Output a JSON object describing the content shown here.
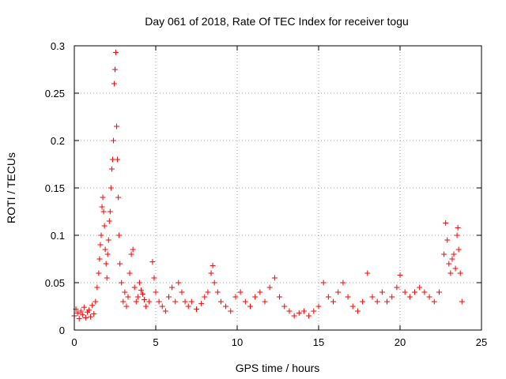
{
  "chart_data": {
    "type": "scatter",
    "title": "Day 061 of 2018, Rate Of TEC Index for receiver togu",
    "xlabel": "GPS time / hours",
    "ylabel": "ROTI / TECUs",
    "xlim": [
      0,
      25
    ],
    "ylim": [
      0,
      0.3
    ],
    "xticks": [
      0,
      5,
      10,
      15,
      20,
      25
    ],
    "yticks": [
      0,
      0.05,
      0.1,
      0.15,
      0.2,
      0.25,
      0.3
    ],
    "xtick_labels": [
      "0",
      "5",
      "10",
      "15",
      "20",
      "25"
    ],
    "ytick_labels": [
      "0",
      "0.05",
      "0.1",
      "0.15",
      "0.2",
      "0.25",
      "0.3"
    ],
    "grid": true,
    "legend": "none",
    "marker": "plus",
    "series_color": "#ff0000",
    "series": [
      {
        "points": [
          [
            0.0,
            0.015
          ],
          [
            0.1,
            0.022
          ],
          [
            0.2,
            0.018
          ],
          [
            0.3,
            0.012
          ],
          [
            0.4,
            0.02
          ],
          [
            0.5,
            0.016
          ],
          [
            0.6,
            0.024
          ],
          [
            0.7,
            0.013
          ],
          [
            0.8,
            0.019
          ],
          [
            0.9,
            0.021
          ],
          [
            1.0,
            0.014
          ],
          [
            1.1,
            0.026
          ],
          [
            1.2,
            0.017
          ],
          [
            1.3,
            0.03
          ],
          [
            1.4,
            0.045
          ],
          [
            1.5,
            0.06
          ],
          [
            1.55,
            0.075
          ],
          [
            1.6,
            0.09
          ],
          [
            1.65,
            0.1
          ],
          [
            1.7,
            0.13
          ],
          [
            1.75,
            0.14
          ],
          [
            1.8,
            0.125
          ],
          [
            1.85,
            0.11
          ],
          [
            1.9,
            0.085
          ],
          [
            1.95,
            0.07
          ],
          [
            2.0,
            0.055
          ],
          [
            2.05,
            0.08
          ],
          [
            2.1,
            0.095
          ],
          [
            2.15,
            0.115
          ],
          [
            2.2,
            0.125
          ],
          [
            2.25,
            0.15
          ],
          [
            2.3,
            0.17
          ],
          [
            2.35,
            0.18
          ],
          [
            2.4,
            0.2
          ],
          [
            2.45,
            0.26
          ],
          [
            2.5,
            0.275
          ],
          [
            2.55,
            0.293
          ],
          [
            2.6,
            0.215
          ],
          [
            2.65,
            0.18
          ],
          [
            2.7,
            0.14
          ],
          [
            2.75,
            0.1
          ],
          [
            2.8,
            0.07
          ],
          [
            2.9,
            0.05
          ],
          [
            3.0,
            0.03
          ],
          [
            3.1,
            0.04
          ],
          [
            3.2,
            0.025
          ],
          [
            3.3,
            0.035
          ],
          [
            3.4,
            0.06
          ],
          [
            3.5,
            0.08
          ],
          [
            3.6,
            0.085
          ],
          [
            3.7,
            0.045
          ],
          [
            3.8,
            0.03
          ],
          [
            3.9,
            0.035
          ],
          [
            4.0,
            0.05
          ],
          [
            4.1,
            0.042
          ],
          [
            4.2,
            0.038
          ],
          [
            4.3,
            0.032
          ],
          [
            4.4,
            0.025
          ],
          [
            4.6,
            0.03
          ],
          [
            4.8,
            0.072
          ],
          [
            4.9,
            0.055
          ],
          [
            5.0,
            0.04
          ],
          [
            5.2,
            0.03
          ],
          [
            5.4,
            0.025
          ],
          [
            5.6,
            0.02
          ],
          [
            5.8,
            0.035
          ],
          [
            6.0,
            0.045
          ],
          [
            6.2,
            0.03
          ],
          [
            6.4,
            0.05
          ],
          [
            6.6,
            0.04
          ],
          [
            6.8,
            0.03
          ],
          [
            7.0,
            0.025
          ],
          [
            7.2,
            0.03
          ],
          [
            7.5,
            0.022
          ],
          [
            7.8,
            0.028
          ],
          [
            8.0,
            0.035
          ],
          [
            8.2,
            0.04
          ],
          [
            8.4,
            0.06
          ],
          [
            8.5,
            0.068
          ],
          [
            8.6,
            0.05
          ],
          [
            8.8,
            0.04
          ],
          [
            9.0,
            0.03
          ],
          [
            9.3,
            0.025
          ],
          [
            9.6,
            0.02
          ],
          [
            9.9,
            0.035
          ],
          [
            10.2,
            0.04
          ],
          [
            10.5,
            0.03
          ],
          [
            10.8,
            0.025
          ],
          [
            11.1,
            0.035
          ],
          [
            11.4,
            0.04
          ],
          [
            11.7,
            0.03
          ],
          [
            12.0,
            0.045
          ],
          [
            12.3,
            0.055
          ],
          [
            12.6,
            0.035
          ],
          [
            12.9,
            0.025
          ],
          [
            13.2,
            0.02
          ],
          [
            13.5,
            0.015
          ],
          [
            13.8,
            0.018
          ],
          [
            14.1,
            0.02
          ],
          [
            14.4,
            0.015
          ],
          [
            14.7,
            0.02
          ],
          [
            15.0,
            0.025
          ],
          [
            15.3,
            0.05
          ],
          [
            15.6,
            0.035
          ],
          [
            15.9,
            0.03
          ],
          [
            16.2,
            0.04
          ],
          [
            16.5,
            0.05
          ],
          [
            16.8,
            0.035
          ],
          [
            17.1,
            0.025
          ],
          [
            17.4,
            0.02
          ],
          [
            17.7,
            0.03
          ],
          [
            18.0,
            0.06
          ],
          [
            18.3,
            0.035
          ],
          [
            18.6,
            0.03
          ],
          [
            18.9,
            0.04
          ],
          [
            19.2,
            0.03
          ],
          [
            19.5,
            0.035
          ],
          [
            19.8,
            0.045
          ],
          [
            20.0,
            0.058
          ],
          [
            20.3,
            0.04
          ],
          [
            20.6,
            0.035
          ],
          [
            20.9,
            0.04
          ],
          [
            21.2,
            0.045
          ],
          [
            21.5,
            0.04
          ],
          [
            21.8,
            0.035
          ],
          [
            22.1,
            0.03
          ],
          [
            22.4,
            0.04
          ],
          [
            22.7,
            0.08
          ],
          [
            22.8,
            0.113
          ],
          [
            22.9,
            0.095
          ],
          [
            23.0,
            0.07
          ],
          [
            23.1,
            0.06
          ],
          [
            23.2,
            0.075
          ],
          [
            23.3,
            0.08
          ],
          [
            23.4,
            0.065
          ],
          [
            23.5,
            0.1
          ],
          [
            23.55,
            0.108
          ],
          [
            23.6,
            0.085
          ],
          [
            23.7,
            0.06
          ],
          [
            23.8,
            0.03
          ]
        ]
      }
    ]
  }
}
